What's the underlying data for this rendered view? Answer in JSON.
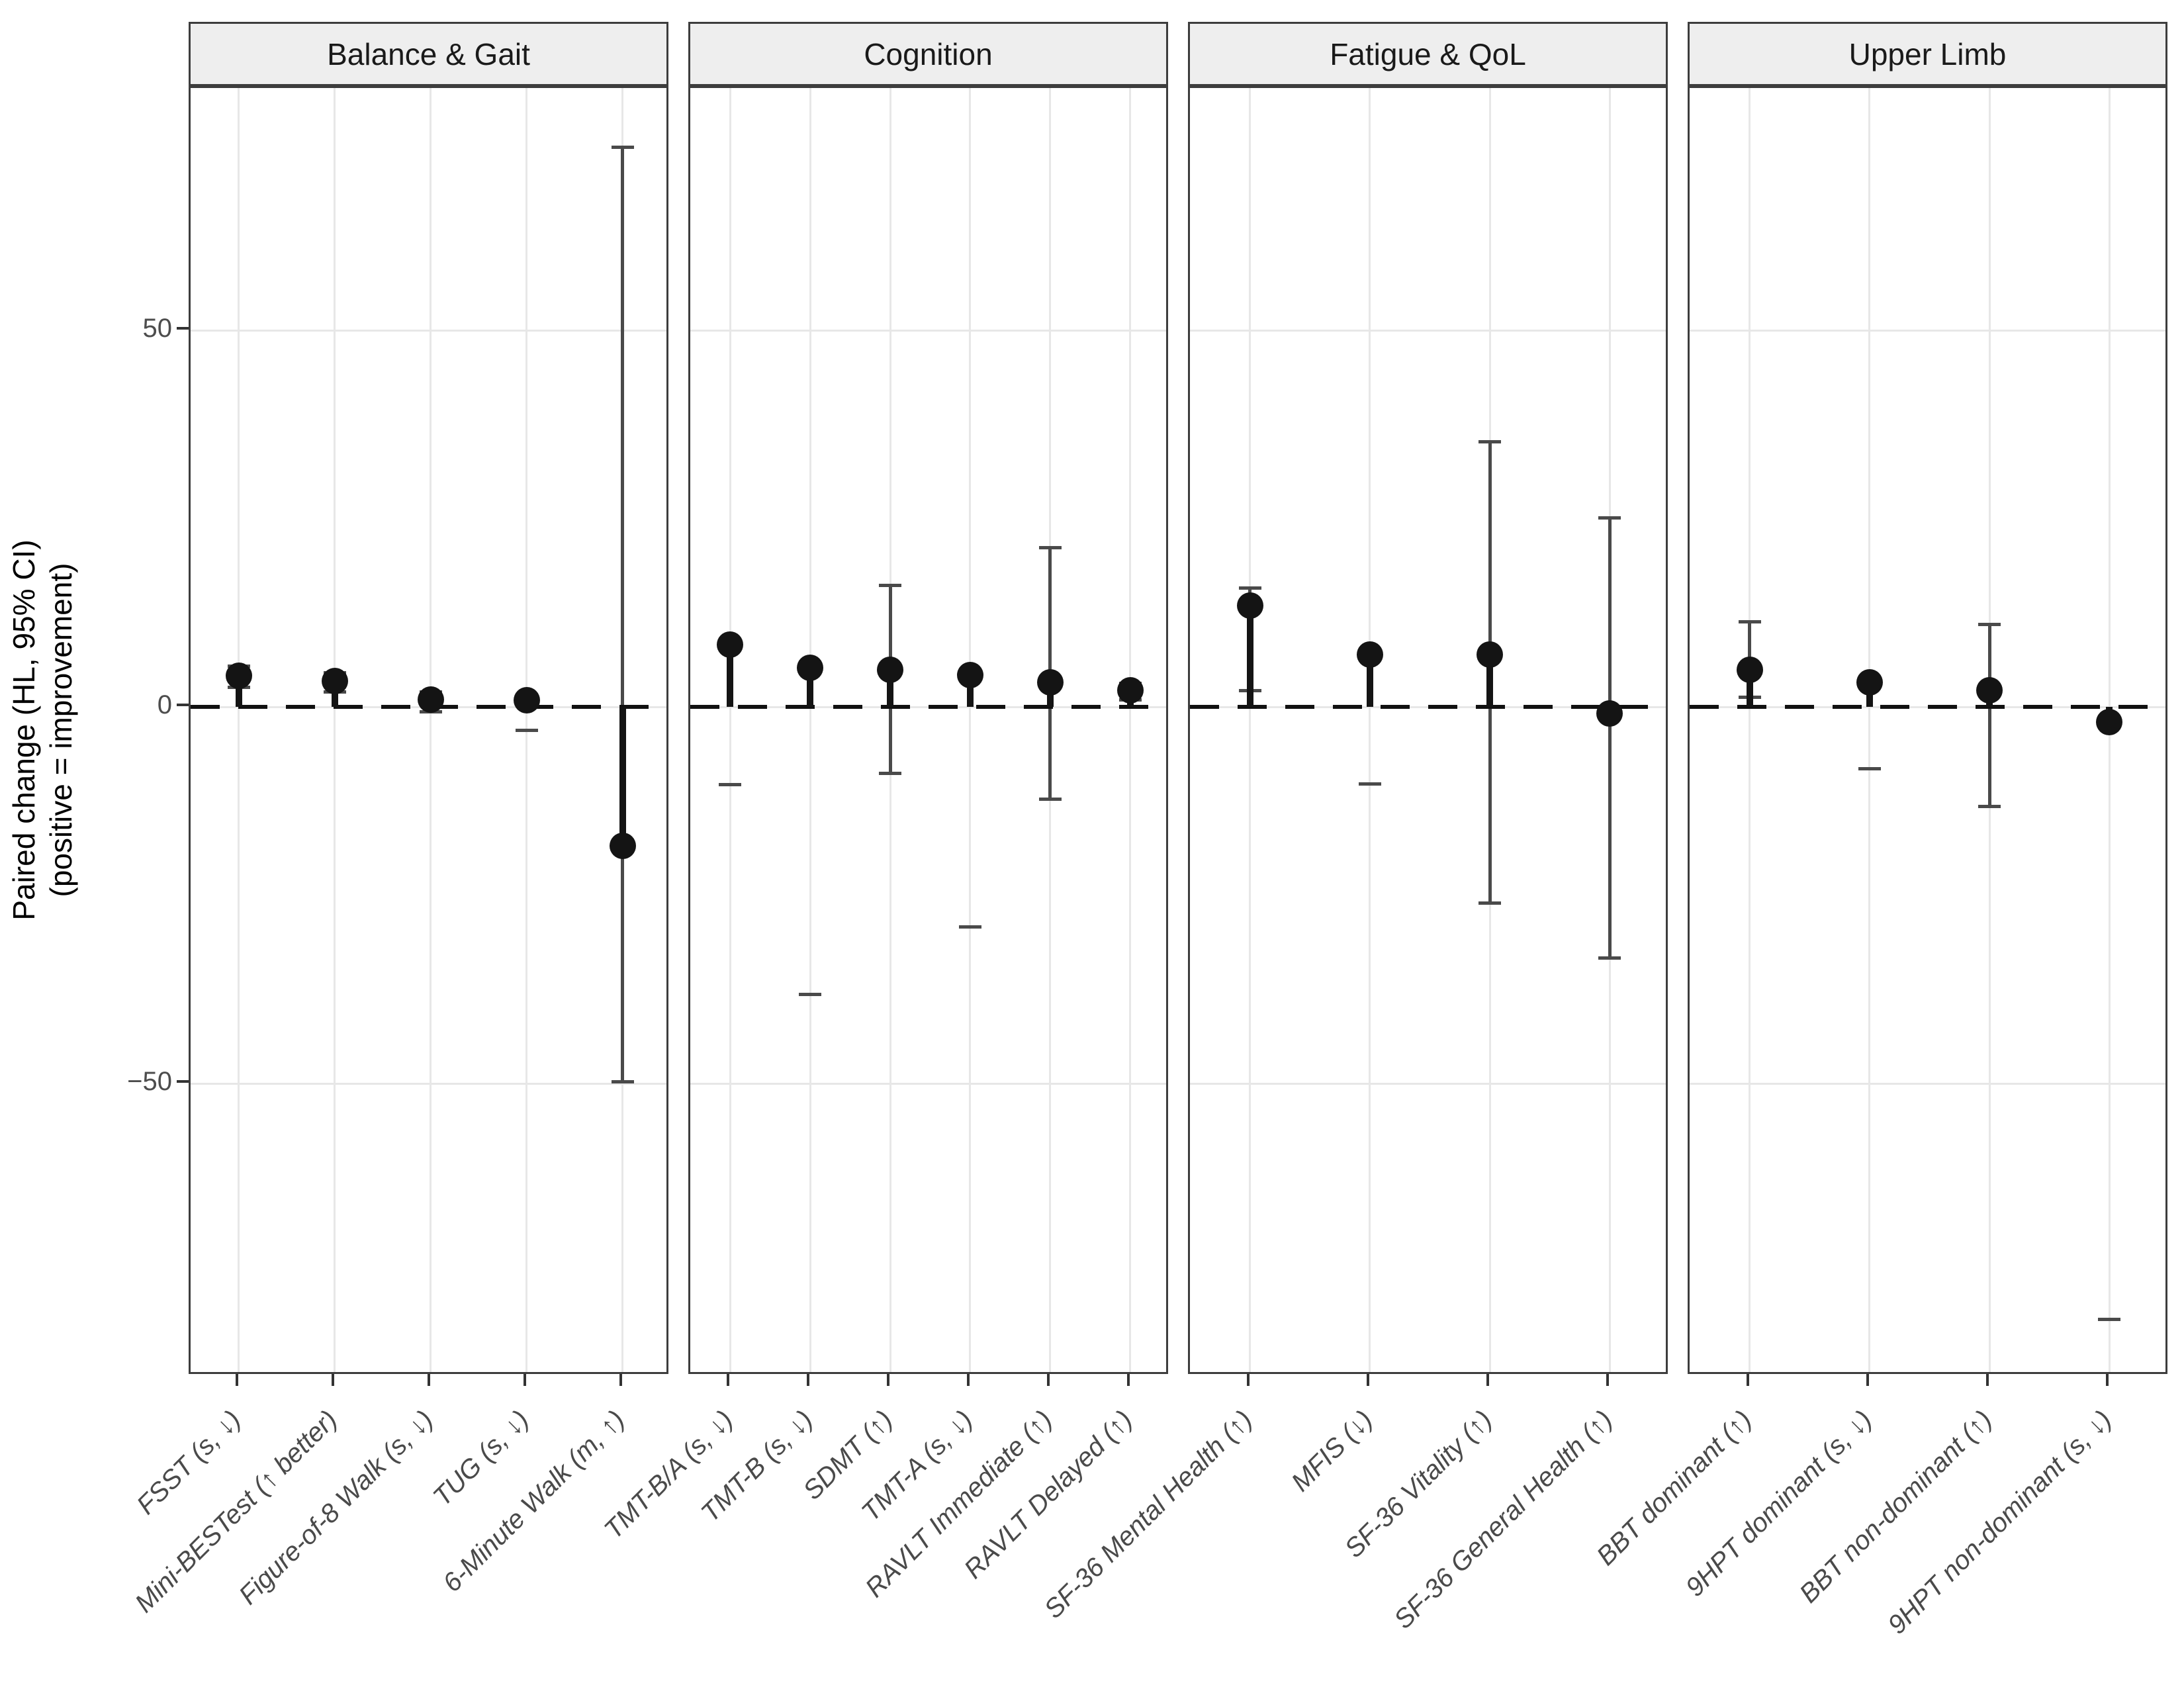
{
  "figure": {
    "kind": "faceted forest / lollipop plot",
    "background": "#ffffff"
  },
  "y_axis": {
    "title_line1": "Paired change (HL, 95% CI)",
    "title_line2": "(positive = improvement)",
    "ticks": [
      {
        "label": "50",
        "value": 50
      },
      {
        "label": "0",
        "value": 0
      },
      {
        "label": "−50",
        "value": -50
      }
    ]
  },
  "zero_reference_line": {
    "value": 0,
    "style": "dashed",
    "color": "#111111"
  },
  "colors": {
    "point": "#141414",
    "stem": "#141414",
    "ci": "#4a4a4a",
    "gridline": "#e7e7e7",
    "panel_border": "#3d3d3d",
    "strip_fill": "#eeeeee",
    "tick_text": "#4d4d4d"
  },
  "chart_data": {
    "type": "scatter",
    "subtype": "point-estimates-with-95CI-error-bars-and-stems-to-zero",
    "y_domain": [
      -88.8,
      82.2
    ],
    "grid": "major-only",
    "facets": [
      {
        "name": "Balance & Gait",
        "measures": [
          {
            "label": "FSST (s, ↓)",
            "est": 4.2,
            "lo": 2.6,
            "hi": 5.4,
            "ci_line_visible": true
          },
          {
            "label": "Mini-BESTest (↑ better)",
            "est": 3.5,
            "lo": 2.0,
            "hi": 4.6,
            "ci_line_visible": true
          },
          {
            "label": "Figure-of-8 Walk (s, ↓)",
            "est": 1.0,
            "lo": -0.6,
            "hi": 2.0,
            "ci_line_visible": true
          },
          {
            "label": "TUG (s, ↓)",
            "est": 0.9,
            "lo": -3.1,
            "hi": 1.5,
            "ci_line_visible": false
          },
          {
            "label": "6-Minute Walk (m, ↑)",
            "est": -18.4,
            "lo": -49.7,
            "hi": 74.3,
            "ci_line_visible": true
          }
        ]
      },
      {
        "name": "Cognition",
        "measures": [
          {
            "label": "TMT-B/A (s, ↓)",
            "est": 8.3,
            "lo": -10.3,
            "hi": 8.9,
            "ci_line_visible": false
          },
          {
            "label": "TMT-B (s, ↓)",
            "est": 5.2,
            "lo": -38.1,
            "hi": 5.8,
            "ci_line_visible": false
          },
          {
            "label": "SDMT (↑)",
            "est": 5.0,
            "lo": -8.8,
            "hi": 16.2,
            "ci_line_visible": true
          },
          {
            "label": "TMT-A (s, ↓)",
            "est": 4.3,
            "lo": -29.2,
            "hi": 4.9,
            "ci_line_visible": false
          },
          {
            "label": "RAVLT Immediate (↑)",
            "est": 3.3,
            "lo": -12.2,
            "hi": 21.2,
            "ci_line_visible": true
          },
          {
            "label": "RAVLT Delayed (↑)",
            "est": 2.2,
            "lo": 1.0,
            "hi": 3.2,
            "ci_line_visible": true
          }
        ]
      },
      {
        "name": "Fatigue & QoL",
        "measures": [
          {
            "label": "SF-36 Mental Health (↑)",
            "est": 13.5,
            "lo": 2.2,
            "hi": 15.8,
            "ci_line_visible": true
          },
          {
            "label": "MFIS (↓)",
            "est": 7.0,
            "lo": -10.2,
            "hi": 7.6,
            "ci_line_visible": false
          },
          {
            "label": "SF-36 Vitality (↑)",
            "est": 7.0,
            "lo": -26.0,
            "hi": 35.2,
            "ci_line_visible": true
          },
          {
            "label": "SF-36 General Health (↑)",
            "est": -0.8,
            "lo": -33.3,
            "hi": 25.1,
            "ci_line_visible": true
          }
        ]
      },
      {
        "name": "Upper Limb",
        "measures": [
          {
            "label": "BBT dominant (↑)",
            "est": 5.0,
            "lo": 1.3,
            "hi": 11.3,
            "ci_line_visible": true
          },
          {
            "label": "9HPT dominant (s, ↓)",
            "est": 3.3,
            "lo": -8.2,
            "hi": 3.9,
            "ci_line_visible": false
          },
          {
            "label": "BBT non-dominant (↑)",
            "est": 2.2,
            "lo": -13.2,
            "hi": 11.0,
            "ci_line_visible": true
          },
          {
            "label": "9HPT non-dominant (s, ↓)",
            "est": -2.0,
            "lo": -81.3,
            "hi": -1.4,
            "ci_line_visible": false
          }
        ]
      }
    ]
  }
}
